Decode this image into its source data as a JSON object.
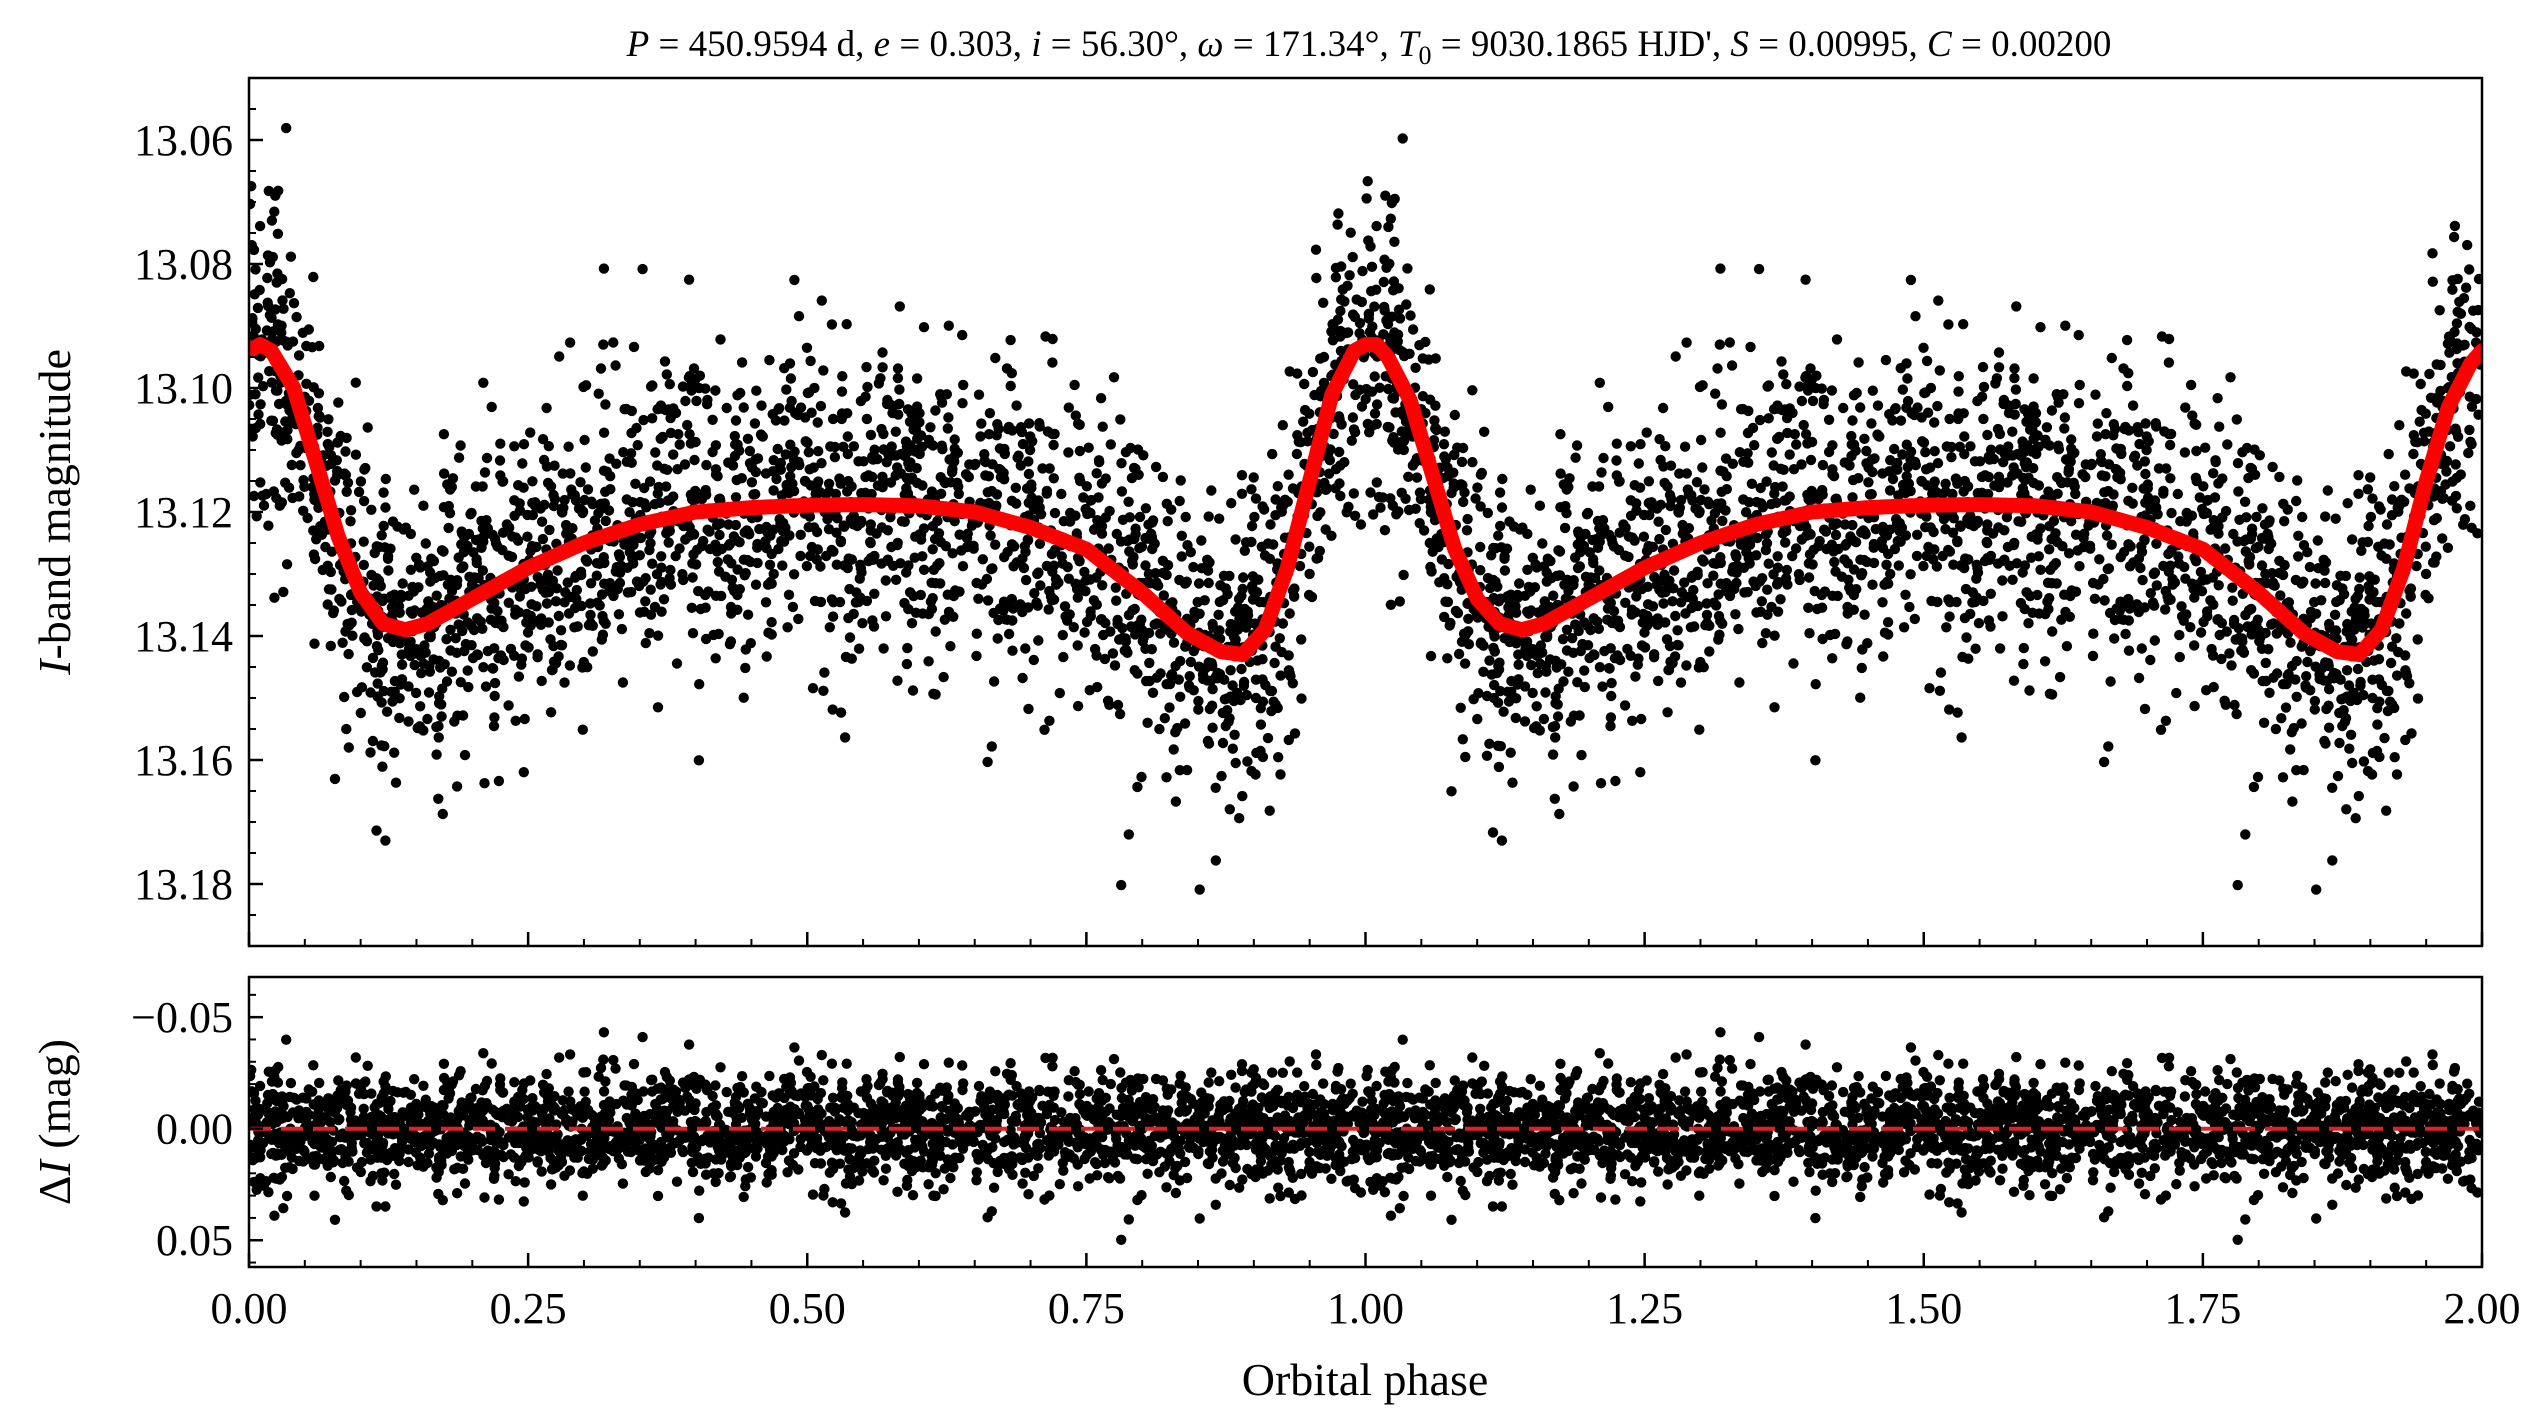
{
  "chart_data": [
    {
      "type": "scatter",
      "panel": "top",
      "title": "P = 450.9594 d, e = 0.303, i = 56.30°, ω = 171.34°, T0 = 9030.1865 HJD', S = 0.00995, C = 0.00200",
      "title_parts": {
        "P_sym": "P",
        "P_val": " = 450.9594 d, ",
        "e_sym": "e",
        "e_val": " = 0.303, ",
        "i_sym": "i",
        "i_val": " = 56.30°, ",
        "w_sym": "ω",
        "w_val": " = 171.34°, ",
        "T_sym": "T",
        "T_sub": "0",
        "T_val": " = 9030.1865 HJD', ",
        "S_sym": "S",
        "S_val": " = 0.00995, ",
        "C_sym": "C",
        "C_val": " = 0.00200"
      },
      "xlabel": "",
      "ylabel_italic": "I",
      "ylabel_rest": "-band magnitude",
      "xlim": [
        0.0,
        2.0
      ],
      "ylim": [
        13.19,
        13.05
      ],
      "y_inverted": true,
      "yticks": [
        "13.06",
        "13.08",
        "13.10",
        "13.12",
        "13.14",
        "13.16",
        "13.18"
      ],
      "series": [
        {
          "kind": "points",
          "color": "#000000",
          "description_of_shape": "dense OGLE I-band photometry folded on orbital phase, repeated twice",
          "x": [
            0.0,
            0.02,
            0.04,
            0.06,
            0.08,
            0.1,
            0.12,
            0.14,
            0.16,
            0.2,
            0.25,
            0.3,
            0.35,
            0.4,
            0.45,
            0.5,
            0.55,
            0.6,
            0.65,
            0.7,
            0.75,
            0.8,
            0.84,
            0.87,
            0.89,
            0.91,
            0.94,
            0.97,
            1.0,
            1.01,
            1.03,
            1.06,
            1.1,
            1.14,
            1.2,
            1.3,
            1.4,
            1.5,
            1.6,
            1.7,
            1.8,
            1.89,
            1.95,
            2.0
          ],
          "y": [
            13.093,
            13.095,
            13.1,
            13.11,
            13.122,
            13.132,
            13.137,
            13.139,
            13.138,
            13.134,
            13.129,
            13.125,
            13.122,
            13.12,
            13.119,
            13.119,
            13.119,
            13.119,
            13.12,
            13.122,
            13.126,
            13.133,
            13.139,
            13.143,
            13.143,
            13.137,
            13.12,
            13.1,
            13.093,
            13.093,
            13.097,
            13.113,
            13.132,
            13.139,
            13.134,
            13.125,
            13.12,
            13.119,
            13.119,
            13.122,
            13.133,
            13.143,
            13.125,
            13.093
          ],
          "scatter_sigma": 0.012
        },
        {
          "kind": "model",
          "color": "#ff0000",
          "x": [
            0.0,
            0.01,
            0.02,
            0.04,
            0.06,
            0.08,
            0.1,
            0.12,
            0.14,
            0.16,
            0.2,
            0.25,
            0.3,
            0.35,
            0.4,
            0.45,
            0.5,
            0.55,
            0.6,
            0.65,
            0.7,
            0.75,
            0.8,
            0.84,
            0.87,
            0.89,
            0.91,
            0.93,
            0.95,
            0.97,
            0.99,
            1.0,
            1.01,
            1.02,
            1.04,
            1.06,
            1.08,
            1.1,
            1.12,
            1.14,
            1.16,
            1.2,
            1.25,
            1.3,
            1.35,
            1.4,
            1.45,
            1.5,
            1.55,
            1.6,
            1.65,
            1.7,
            1.75,
            1.8,
            1.84,
            1.87,
            1.89,
            1.91,
            1.93,
            1.95,
            1.97,
            1.99,
            2.0
          ],
          "y": [
            13.094,
            13.093,
            13.094,
            13.1,
            13.112,
            13.124,
            13.133,
            13.138,
            13.139,
            13.138,
            13.134,
            13.129,
            13.125,
            13.122,
            13.12,
            13.1193,
            13.1189,
            13.1188,
            13.119,
            13.12,
            13.1225,
            13.126,
            13.133,
            13.1395,
            13.1425,
            13.143,
            13.139,
            13.129,
            13.115,
            13.101,
            13.094,
            13.093,
            13.093,
            13.095,
            13.102,
            13.114,
            13.126,
            13.134,
            13.138,
            13.139,
            13.138,
            13.134,
            13.129,
            13.125,
            13.122,
            13.12,
            13.1193,
            13.1189,
            13.1188,
            13.119,
            13.12,
            13.1225,
            13.126,
            13.133,
            13.1395,
            13.1425,
            13.143,
            13.139,
            13.129,
            13.115,
            13.103,
            13.096,
            13.094
          ]
        }
      ]
    },
    {
      "type": "scatter",
      "panel": "bottom",
      "xlabel": "Orbital phase",
      "ylabel_delta": "Δ",
      "ylabel_italic": "I",
      "ylabel_rest": " (mag)",
      "xlim": [
        0.0,
        2.0
      ],
      "ylim": [
        0.062,
        -0.068
      ],
      "y_inverted": true,
      "xticks": [
        "0.00",
        "0.25",
        "0.50",
        "0.75",
        "1.00",
        "1.25",
        "1.50",
        "1.75",
        "2.00"
      ],
      "yticks": [
        "−0.05",
        "0.00",
        "0.05"
      ],
      "series": [
        {
          "kind": "residuals",
          "color": "#000000",
          "center": 0.0,
          "scatter_sigma": 0.012
        },
        {
          "kind": "zero-line",
          "color": "#dd2222",
          "style": "dashed",
          "y": 0.0
        }
      ]
    }
  ]
}
